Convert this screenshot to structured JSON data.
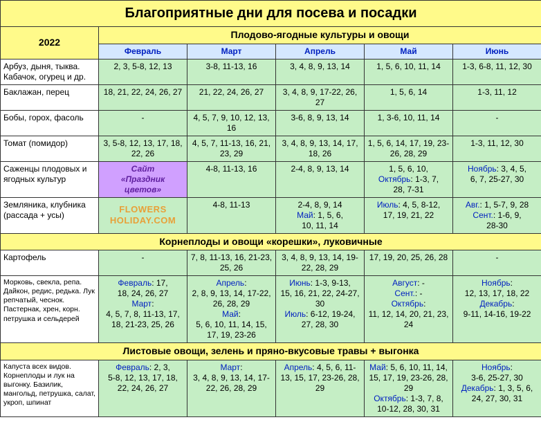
{
  "title": "Благоприятные дни для посева и посадки",
  "year": "2022",
  "colors": {
    "header_bg": "#fffa8a",
    "month_bg": "#d5e8ff",
    "value_bg": "#c5eec5",
    "link_color": "#0020c0",
    "watermark1_bg": "#d0a0ff",
    "watermark2_color": "#e8a038"
  },
  "sections": {
    "s1": "Плодово-ягодные культуры и овощи",
    "s2": "Корнеплоды и овощи «корешки», луковичные",
    "s3": "Листовые овощи, зелень и пряно-вкусовые травы + выгонка"
  },
  "months": {
    "m1": "Февраль",
    "m2": "Март",
    "m3": "Апрель",
    "m4": "Май",
    "m5": "Июнь"
  },
  "watermarks": {
    "w1a": "Сайт",
    "w1b": "«Праздник",
    "w1c": "цветов»",
    "w2a": "FLOWERS",
    "w2b": "HOLIDAY.COM"
  },
  "rows": {
    "r1": {
      "crop": "Арбуз, дыня, тыква. Кабачок, огурец и др.",
      "feb": "2, 3, 5-8, 12, 13",
      "mar": "3-8, 11-13, 16",
      "apr": "3, 4, 8, 9, 13, 14",
      "may": "1, 5, 6, 10, 11, 14",
      "jun": "1-3, 6-8, 11, 12, 30"
    },
    "r2": {
      "crop": "Баклажан, перец",
      "feb": "18, 21, 22, 24, 26, 27",
      "mar": "21, 22, 24, 26, 27",
      "apr": "3, 4, 8, 9, 17-22, 26, 27",
      "may": "1, 5, 6, 14",
      "jun": "1-3, 11, 12"
    },
    "r3": {
      "crop": "Бобы, горох, фасоль",
      "feb": "-",
      "mar": "4, 5, 7, 9, 10, 12, 13, 16",
      "apr": "3-6, 8, 9, 13, 14",
      "may": "1, 3-6, 10, 11, 14",
      "jun": "-"
    },
    "r4": {
      "crop": "Томат (помидор)",
      "feb": "3, 5-8, 12, 13, 17, 18, 22, 26",
      "mar": "4, 5, 7, 11-13, 16, 21, 23, 29",
      "apr": "3, 4, 8, 9, 13, 14, 17, 18, 26",
      "may": "1, 5, 6, 14, 17, 19, 23-26, 28, 29",
      "jun": "1-3, 11, 12, 30"
    },
    "r5": {
      "crop": "Саженцы плодовых и ягодных культур",
      "mar": "4-8, 11-13, 16",
      "apr": "2-4, 8, 9, 13, 14",
      "may_l1": "1, 5, 6, 10,",
      "may_l2h": "Октябрь",
      "may_l2v": ": 1-3, 7,",
      "may_l3": "28, 7-31",
      "jun_l1h": "Ноябрь",
      "jun_l1v": ": 3, 4, 5,",
      "jun_l2": "6, 7, 25-27, 30"
    },
    "r6": {
      "crop": "Земляника, клубника (рассада + усы)",
      "mar": "4-8, 11-13",
      "apr_l1": "2-4, 8, 9, 14",
      "apr_l2h": "Май",
      "apr_l2v": ": 1, 5, 6,",
      "apr_l3": "10, 11, 14",
      "may_l1h": "Июль",
      "may_l1v": ": 4, 5, 8-12,",
      "may_l2": "17, 19, 21, 22",
      "jun_l1h": "Авг.",
      "jun_l1v": ": 1, 5-7, 9, 28",
      "jun_l2h": "Сент.",
      "jun_l2v": ": 1-6, 9,",
      "jun_l3": "28-30"
    },
    "r7": {
      "crop": "Картофель",
      "feb": "-",
      "mar": "7, 8, 11-13, 16, 21-23, 25, 26",
      "apr": "3, 4, 8, 9, 13, 14, 19-22, 28, 29",
      "may": "17, 19, 20, 25, 26, 28",
      "jun": "-"
    },
    "r8": {
      "crop": "Морковь, свекла, репа. Дайкон, редис, редька. Лук репчатый, чеснок. Пастернак, хрен, корн. петрушка и сельдерей",
      "feb_l1h": "Февраль",
      "feb_l1v": ": 17,",
      "feb_l2": "18, 24, 26, 27",
      "feb_l3h": "Март",
      "feb_l3v": ":",
      "feb_l4": "4, 5, 7, 8, 11-13, 17, 18, 21-23, 25, 26",
      "mar_l1h": "Апрель",
      "mar_l1v": ":",
      "mar_l2": "2, 8, 9, 13, 14, 17-22, 26, 28, 29",
      "mar_l3h": "Май",
      "mar_l3v": ":",
      "mar_l4": "5, 6, 10, 11, 14, 15, 17, 19, 23-26",
      "apr_l1h": "Июнь",
      "apr_l1v": ": 1-3, 9-13,",
      "apr_l2": "15, 16, 21, 22, 24-27, 30",
      "apr_l3h": "Июль",
      "apr_l3v": ": 6-12, 19-24, 27, 28, 30",
      "may_l1h": "Август",
      "may_l1v": ": -",
      "may_l2h": "Сент.",
      "may_l2v": ": -",
      "may_l3h": "Октябрь",
      "may_l3v": ":",
      "may_l4": "11, 12, 14, 20, 21, 23, 24",
      "jun_l1h": "Ноябрь",
      "jun_l1v": ":",
      "jun_l2": "12, 13, 17, 18, 22",
      "jun_l3h": "Декабрь",
      "jun_l3v": ":",
      "jun_l4": "9-11, 14-16, 19-22"
    },
    "r9": {
      "crop": "Капуста всех видов. Корнеплоды и лук на выгонку. Базилик, мангольд, петрушка, салат, укроп, шпинат",
      "feb_l1h": "Февраль",
      "feb_l1v": ": 2, 3,",
      "feb_l2": "5-8, 12, 13, 17, 18, 22, 24, 26, 27",
      "mar_l1h": "Март",
      "mar_l1v": ":",
      "mar_l2": "3, 4, 8, 9, 13, 14, 17-22, 26, 28, 29",
      "apr_l1h": "Апрель",
      "apr_l1v": ": 4, 5, 6, 11-13, 15, 17, 23-26, 28, 29",
      "may_l1h": "Май",
      "may_l1v": ": 5, 6, 10, 11, 14, 15, 17, 19, 23-26, 28, 29",
      "may_l3h": "Октябрь",
      "may_l3v": ": 1-3, 7, 8, 10-12, 28, 30, 31",
      "jun_l1h": "Ноябрь",
      "jun_l1v": ":",
      "jun_l2": "3-6, 25-27, 30",
      "jun_l3h": "Декабрь",
      "jun_l3v": ": 1, 3, 5, 6, 24, 27, 30, 31"
    }
  }
}
